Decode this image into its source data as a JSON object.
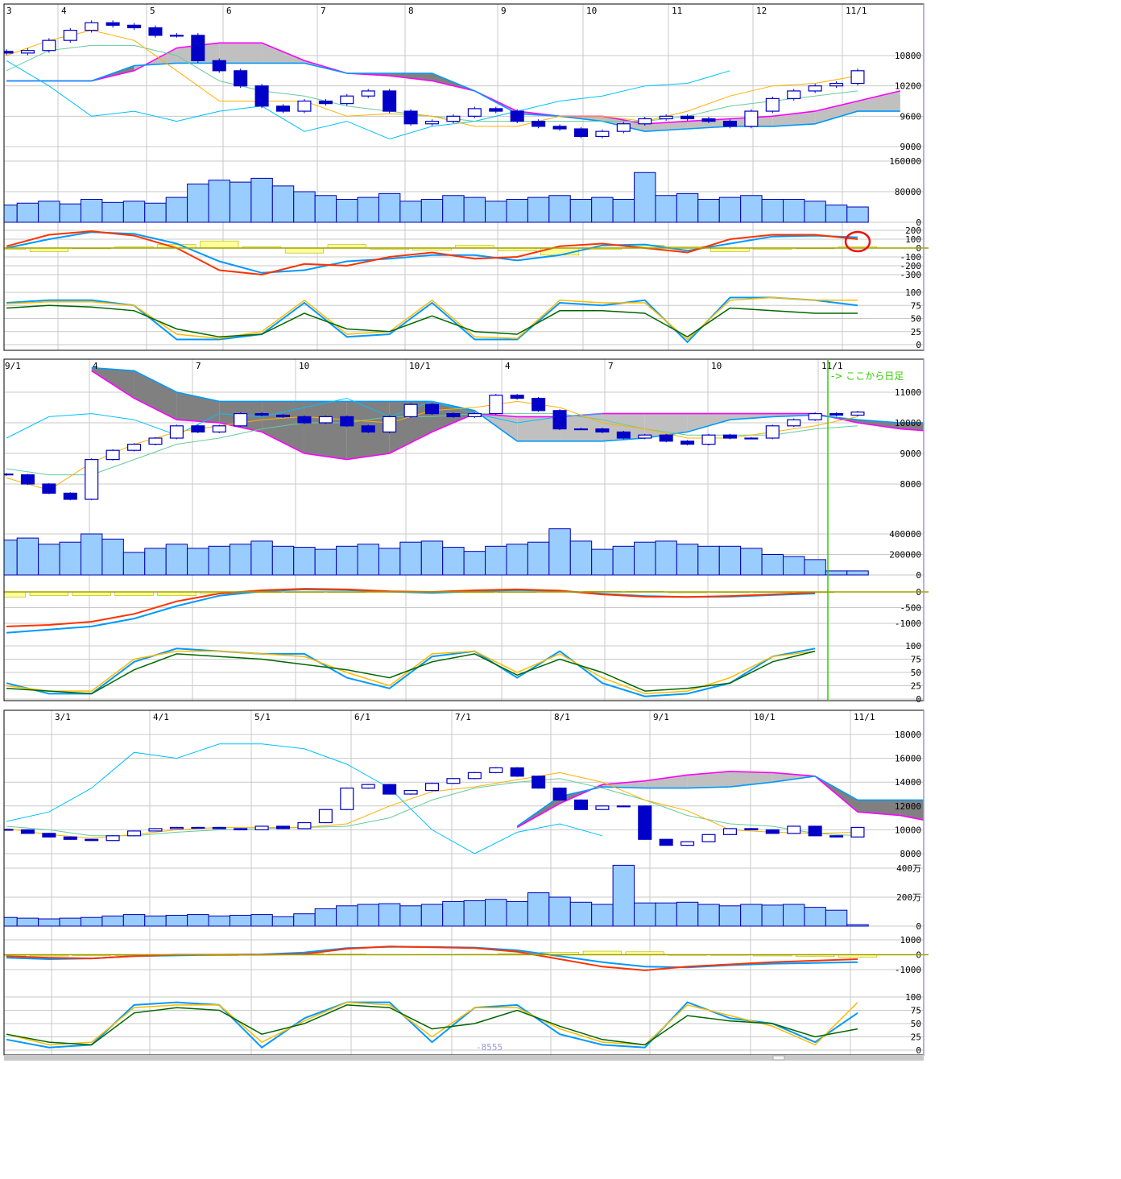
{
  "colors": {
    "up_candle_fill": "#ffffff",
    "candle_stroke": "#0000c8",
    "down_candle_fill": "#0000c8",
    "volume_fill": "#99ccff",
    "volume_stroke": "#0000b0",
    "span_a": "#ff00ff",
    "span_b": "#0099ff",
    "cloud_light": "#c0c0c0",
    "cloud_dark": "#808080",
    "tenkan": "#ffb000",
    "kijun": "#66cc99",
    "chikou": "#00c0ff",
    "macd": "#0099ff",
    "signal": "#ff3300",
    "histogram_fill": "#ffff99",
    "histogram_stroke": "#b0b000",
    "zero_line": "#a0a000",
    "stoch_k": "#0099ff",
    "stoch_d": "#ffbb00",
    "stoch_slow": "#006600",
    "grid": "#c8c8c8",
    "annotation_circle": "#ee1111",
    "marker_line": "#33cc00"
  },
  "footer": {
    "value_label": "-8555"
  },
  "chart_data": [
    {
      "type": "candlestick",
      "name": "daily",
      "x_tick_labels": [
        "3",
        "4",
        "5",
        "6",
        "7",
        "8",
        "9",
        "10",
        "11",
        "12",
        "11/1"
      ],
      "price_ticks": [
        "10800",
        "10200",
        "9600",
        "9000"
      ],
      "volume_ticks": [
        "160000",
        "80000",
        "0"
      ],
      "macd_ticks": [
        "200",
        "100",
        "0",
        "-100",
        "-200",
        "-300"
      ],
      "stoch_ticks": [
        "100",
        "75",
        "50",
        "25",
        "0"
      ],
      "close": [
        10850,
        10900,
        11100,
        11300,
        11450,
        11400,
        11350,
        11200,
        11200,
        10700,
        10500,
        10200,
        9800,
        9700,
        9900,
        9850,
        10000,
        10100,
        9700,
        9450,
        9500,
        9600,
        9750,
        9700,
        9500,
        9400,
        9350,
        9200,
        9300,
        9450,
        9550,
        9600,
        9550,
        9500,
        9400,
        9700,
        9950,
        10100,
        10200,
        10250,
        10500
      ],
      "volume": [
        45000,
        50000,
        55000,
        48000,
        60000,
        52000,
        55000,
        50000,
        65000,
        100000,
        110000,
        105000,
        115000,
        95000,
        80000,
        70000,
        60000,
        65000,
        75000,
        55000,
        60000,
        70000,
        65000,
        55000,
        60000,
        65000,
        70000,
        60000,
        65000,
        60000,
        130000,
        70000,
        75000,
        60000,
        65000,
        70000,
        60000,
        60000,
        55000,
        45000,
        40000
      ],
      "ichimoku": {
        "span_a": [
          10300,
          10300,
          10300,
          10500,
          10950,
          11050,
          11050,
          10700,
          10450,
          10400,
          10300,
          10100,
          9700,
          9600,
          9600,
          9450,
          9500,
          9550,
          9600,
          9700,
          9900,
          10100
        ],
        "span_b": [
          10300,
          10300,
          10300,
          10600,
          10650,
          10650,
          10650,
          10650,
          10450,
          10450,
          10450,
          10100,
          9650,
          9600,
          9500,
          9300,
          9350,
          9400,
          9400,
          9450,
          9700,
          9700
        ],
        "tenkan": [
          10800,
          11100,
          11300,
          11100,
          10500,
          9900,
          9900,
          9900,
          9600,
          9650,
          9600,
          9400,
          9400,
          9600,
          9600,
          9500,
          9700,
          10000,
          10200,
          10250,
          10400
        ],
        "kijun": [
          10500,
          10900,
          11000,
          11000,
          10800,
          10300,
          10100,
          10000,
          9800,
          9700,
          9600,
          9500,
          9500,
          9500,
          9500,
          9500,
          9600,
          9800,
          9900,
          10000,
          10100
        ],
        "chikou": [
          10700,
          10200,
          9600,
          9700,
          9500,
          9700,
          9800,
          9300,
          9500,
          9150,
          9400,
          9500,
          9700,
          9900,
          10000,
          10200,
          10250,
          10500
        ]
      },
      "macd": {
        "macd": [
          0,
          100,
          180,
          160,
          50,
          -150,
          -280,
          -250,
          -150,
          -120,
          -80,
          -80,
          -140,
          -80,
          30,
          40,
          -30,
          50,
          130,
          140,
          120
        ],
        "signal": [
          20,
          150,
          190,
          140,
          0,
          -250,
          -300,
          -180,
          -200,
          -100,
          -50,
          -120,
          -100,
          20,
          50,
          0,
          -50,
          100,
          150,
          150,
          100
        ]
      },
      "stochastic": {
        "k": [
          80,
          85,
          85,
          75,
          10,
          10,
          20,
          80,
          15,
          20,
          80,
          10,
          10,
          80,
          75,
          85,
          5,
          90,
          90,
          85,
          75
        ],
        "d": [
          78,
          82,
          82,
          75,
          20,
          12,
          25,
          85,
          20,
          25,
          85,
          15,
          12,
          85,
          80,
          80,
          10,
          85,
          90,
          85,
          85
        ],
        "slow": [
          70,
          75,
          72,
          65,
          30,
          15,
          20,
          60,
          30,
          25,
          55,
          25,
          20,
          65,
          65,
          60,
          15,
          70,
          65,
          60,
          60
        ]
      },
      "annotation": "red circle around MACD at 11/1"
    },
    {
      "type": "candlestick",
      "name": "weekly",
      "x_tick_labels": [
        "9/1",
        "4",
        "7",
        "10",
        "10/1",
        "4",
        "7",
        "10",
        "11/1"
      ],
      "note": "-> ここから日足",
      "price_ticks": [
        "11000",
        "10000",
        "9000",
        "8000"
      ],
      "volume_ticks": [
        "400000",
        "200000",
        "0"
      ],
      "macd_ticks": [
        "0",
        "-500",
        "-1000"
      ],
      "stoch_ticks": [
        "100",
        "75",
        "50",
        "25",
        "0"
      ],
      "close": [
        8300,
        8000,
        7700,
        7500,
        8800,
        9100,
        9300,
        9500,
        9900,
        9700,
        9900,
        10300,
        10250,
        10200,
        10000,
        10200,
        9900,
        9700,
        10200,
        10600,
        10300,
        10200,
        10300,
        10900,
        10800,
        10400,
        9800,
        9800,
        9700,
        9500,
        9600,
        9400,
        9300,
        9600,
        9500,
        9500,
        9900,
        10100,
        10300,
        10250,
        10350
      ],
      "volume": [
        340000,
        360000,
        300000,
        320000,
        400000,
        350000,
        220000,
        260000,
        300000,
        260000,
        280000,
        300000,
        330000,
        280000,
        270000,
        250000,
        280000,
        300000,
        260000,
        320000,
        330000,
        270000,
        230000,
        280000,
        300000,
        320000,
        450000,
        330000,
        250000,
        280000,
        320000,
        330000,
        300000,
        280000,
        280000,
        260000,
        200000,
        180000,
        150000,
        40000,
        40000
      ],
      "ichimoku": {
        "span_a": [
          null,
          null,
          11700,
          10800,
          10100,
          10000,
          9700,
          9000,
          8800,
          9000,
          9700,
          10300,
          10200,
          10200,
          10300,
          10300,
          10300,
          10300,
          10300,
          10300,
          10000,
          9800,
          9700
        ],
        "span_b": [
          null,
          null,
          11800,
          11700,
          11000,
          10700,
          10700,
          10700,
          10700,
          10700,
          10700,
          10400,
          9400,
          9400,
          9400,
          9500,
          9700,
          10100,
          10200,
          10250,
          10100,
          10000,
          10000
        ],
        "tenkan": [
          8200,
          7800,
          8700,
          9300,
          9700,
          9900,
          10100,
          10200,
          10100,
          10000,
          10400,
          10500,
          10700,
          10500,
          10000,
          9800,
          9500,
          9500,
          9700,
          9900,
          10200
        ],
        "kijun": [
          8500,
          8300,
          8300,
          8800,
          9300,
          9500,
          9800,
          10000,
          10000,
          10200,
          10200,
          10300,
          10300,
          10300,
          10100,
          9800,
          9600,
          9600,
          9600,
          9800,
          9900
        ],
        "chikou": [
          9500,
          10200,
          10300,
          10100,
          9600,
          10300,
          10200,
          10500,
          10800,
          10200,
          10700,
          10300,
          10000,
          10200,
          10300
        ]
      },
      "macd": {
        "macd": [
          -1300,
          -1200,
          -1100,
          -850,
          -450,
          -120,
          20,
          80,
          60,
          10,
          -30,
          20,
          60,
          30,
          -60,
          -130,
          -160,
          -150,
          -100,
          -50
        ],
        "signal": [
          -1100,
          -1050,
          -950,
          -700,
          -300,
          -50,
          50,
          100,
          80,
          20,
          0,
          50,
          80,
          40,
          -80,
          -150,
          -160,
          -130,
          -80,
          -20
        ]
      },
      "stochastic": {
        "k": [
          30,
          10,
          10,
          70,
          95,
          90,
          85,
          85,
          40,
          20,
          80,
          90,
          40,
          90,
          30,
          5,
          10,
          30,
          80,
          95
        ],
        "d": [
          25,
          15,
          15,
          75,
          90,
          90,
          85,
          80,
          50,
          25,
          85,
          90,
          50,
          85,
          40,
          10,
          15,
          40,
          80,
          90
        ],
        "slow": [
          20,
          15,
          10,
          55,
          85,
          80,
          75,
          65,
          55,
          40,
          70,
          85,
          45,
          75,
          50,
          15,
          20,
          30,
          70,
          90
        ]
      }
    },
    {
      "type": "candlestick",
      "name": "monthly-range",
      "x_tick_labels": [
        "3/1",
        "4/1",
        "5/1",
        "6/1",
        "7/1",
        "8/1",
        "9/1",
        "10/1",
        "11/1"
      ],
      "price_ticks": [
        "18000",
        "16000",
        "14000",
        "12000",
        "10000",
        "8000"
      ],
      "volume_ticks": [
        "400万",
        "200万",
        "0"
      ],
      "macd_ticks": [
        "1000",
        "0",
        "-1000"
      ],
      "stoch_ticks": [
        "100",
        "75",
        "50",
        "25",
        "0"
      ],
      "close": [
        10000,
        9700,
        9400,
        9200,
        9100,
        9500,
        9900,
        10100,
        10200,
        10200,
        10100,
        10000,
        10300,
        10100,
        10600,
        11700,
        13500,
        13800,
        13000,
        13300,
        13900,
        14300,
        14800,
        15200,
        14500,
        13500,
        12500,
        11700,
        12000,
        12000,
        9200,
        8700,
        9000,
        9600,
        10100,
        10000,
        9700,
        10300,
        9500,
        9400,
        10200
      ],
      "volume": [
        600000,
        550000,
        500000,
        550000,
        600000,
        700000,
        800000,
        700000,
        750000,
        800000,
        700000,
        750000,
        800000,
        650000,
        850000,
        1200000,
        1400000,
        1500000,
        1550000,
        1400000,
        1500000,
        1700000,
        1750000,
        1850000,
        1700000,
        2300000,
        2000000,
        1650000,
        1500000,
        4200000,
        1600000,
        1600000,
        1650000,
        1500000,
        1400000,
        1500000,
        1450000,
        1500000,
        1300000,
        1100000,
        100000
      ],
      "ichimoku": {
        "span_a": [
          null,
          null,
          null,
          null,
          null,
          null,
          null,
          null,
          null,
          null,
          null,
          null,
          10200,
          12200,
          13800,
          14100,
          14600,
          14900,
          14800,
          14500,
          11500,
          11200,
          10500
        ],
        "span_b": [
          null,
          null,
          null,
          null,
          null,
          null,
          null,
          null,
          null,
          null,
          null,
          null,
          10300,
          12800,
          13600,
          13500,
          13500,
          13600,
          14000,
          14500,
          12500,
          12500,
          12500
        ],
        "tenkan": [
          10100,
          9600,
          9300,
          9600,
          10000,
          10200,
          10200,
          10200,
          10500,
          12000,
          13200,
          13600,
          14200,
          14800,
          14000,
          12500,
          11600,
          10000,
          9800,
          9700,
          9800
        ],
        "kijun": [
          10300,
          10000,
          9500,
          9500,
          9800,
          10000,
          10100,
          10200,
          10300,
          11000,
          12500,
          13500,
          14000,
          14300,
          13500,
          12500,
          11200,
          10500,
          10300,
          9700,
          9500
        ],
        "chikou": [
          10700,
          11500,
          13500,
          16500,
          16000,
          17200,
          17200,
          16800,
          15500,
          13500,
          10000,
          8000,
          9800,
          10500,
          9500
        ]
      },
      "macd": {
        "macd": [
          -200,
          -300,
          -250,
          -100,
          -50,
          0,
          20,
          150,
          450,
          530,
          520,
          480,
          300,
          -100,
          -500,
          -800,
          -850,
          -700,
          -600,
          -550,
          -500
        ],
        "signal": [
          -100,
          -200,
          -250,
          -100,
          0,
          0,
          0,
          50,
          400,
          550,
          500,
          450,
          200,
          -300,
          -800,
          -1050,
          -800,
          -650,
          -500,
          -400,
          -300
        ]
      },
      "stochastic": {
        "k": [
          20,
          5,
          10,
          85,
          90,
          85,
          5,
          60,
          90,
          90,
          15,
          80,
          85,
          30,
          10,
          5,
          90,
          60,
          50,
          15,
          70
        ],
        "d": [
          30,
          10,
          15,
          80,
          85,
          85,
          15,
          55,
          90,
          85,
          25,
          80,
          80,
          40,
          15,
          10,
          85,
          65,
          45,
          10,
          90
        ],
        "slow": [
          30,
          15,
          10,
          70,
          80,
          75,
          30,
          50,
          85,
          80,
          40,
          50,
          75,
          45,
          20,
          10,
          65,
          55,
          50,
          25,
          40
        ]
      }
    }
  ]
}
